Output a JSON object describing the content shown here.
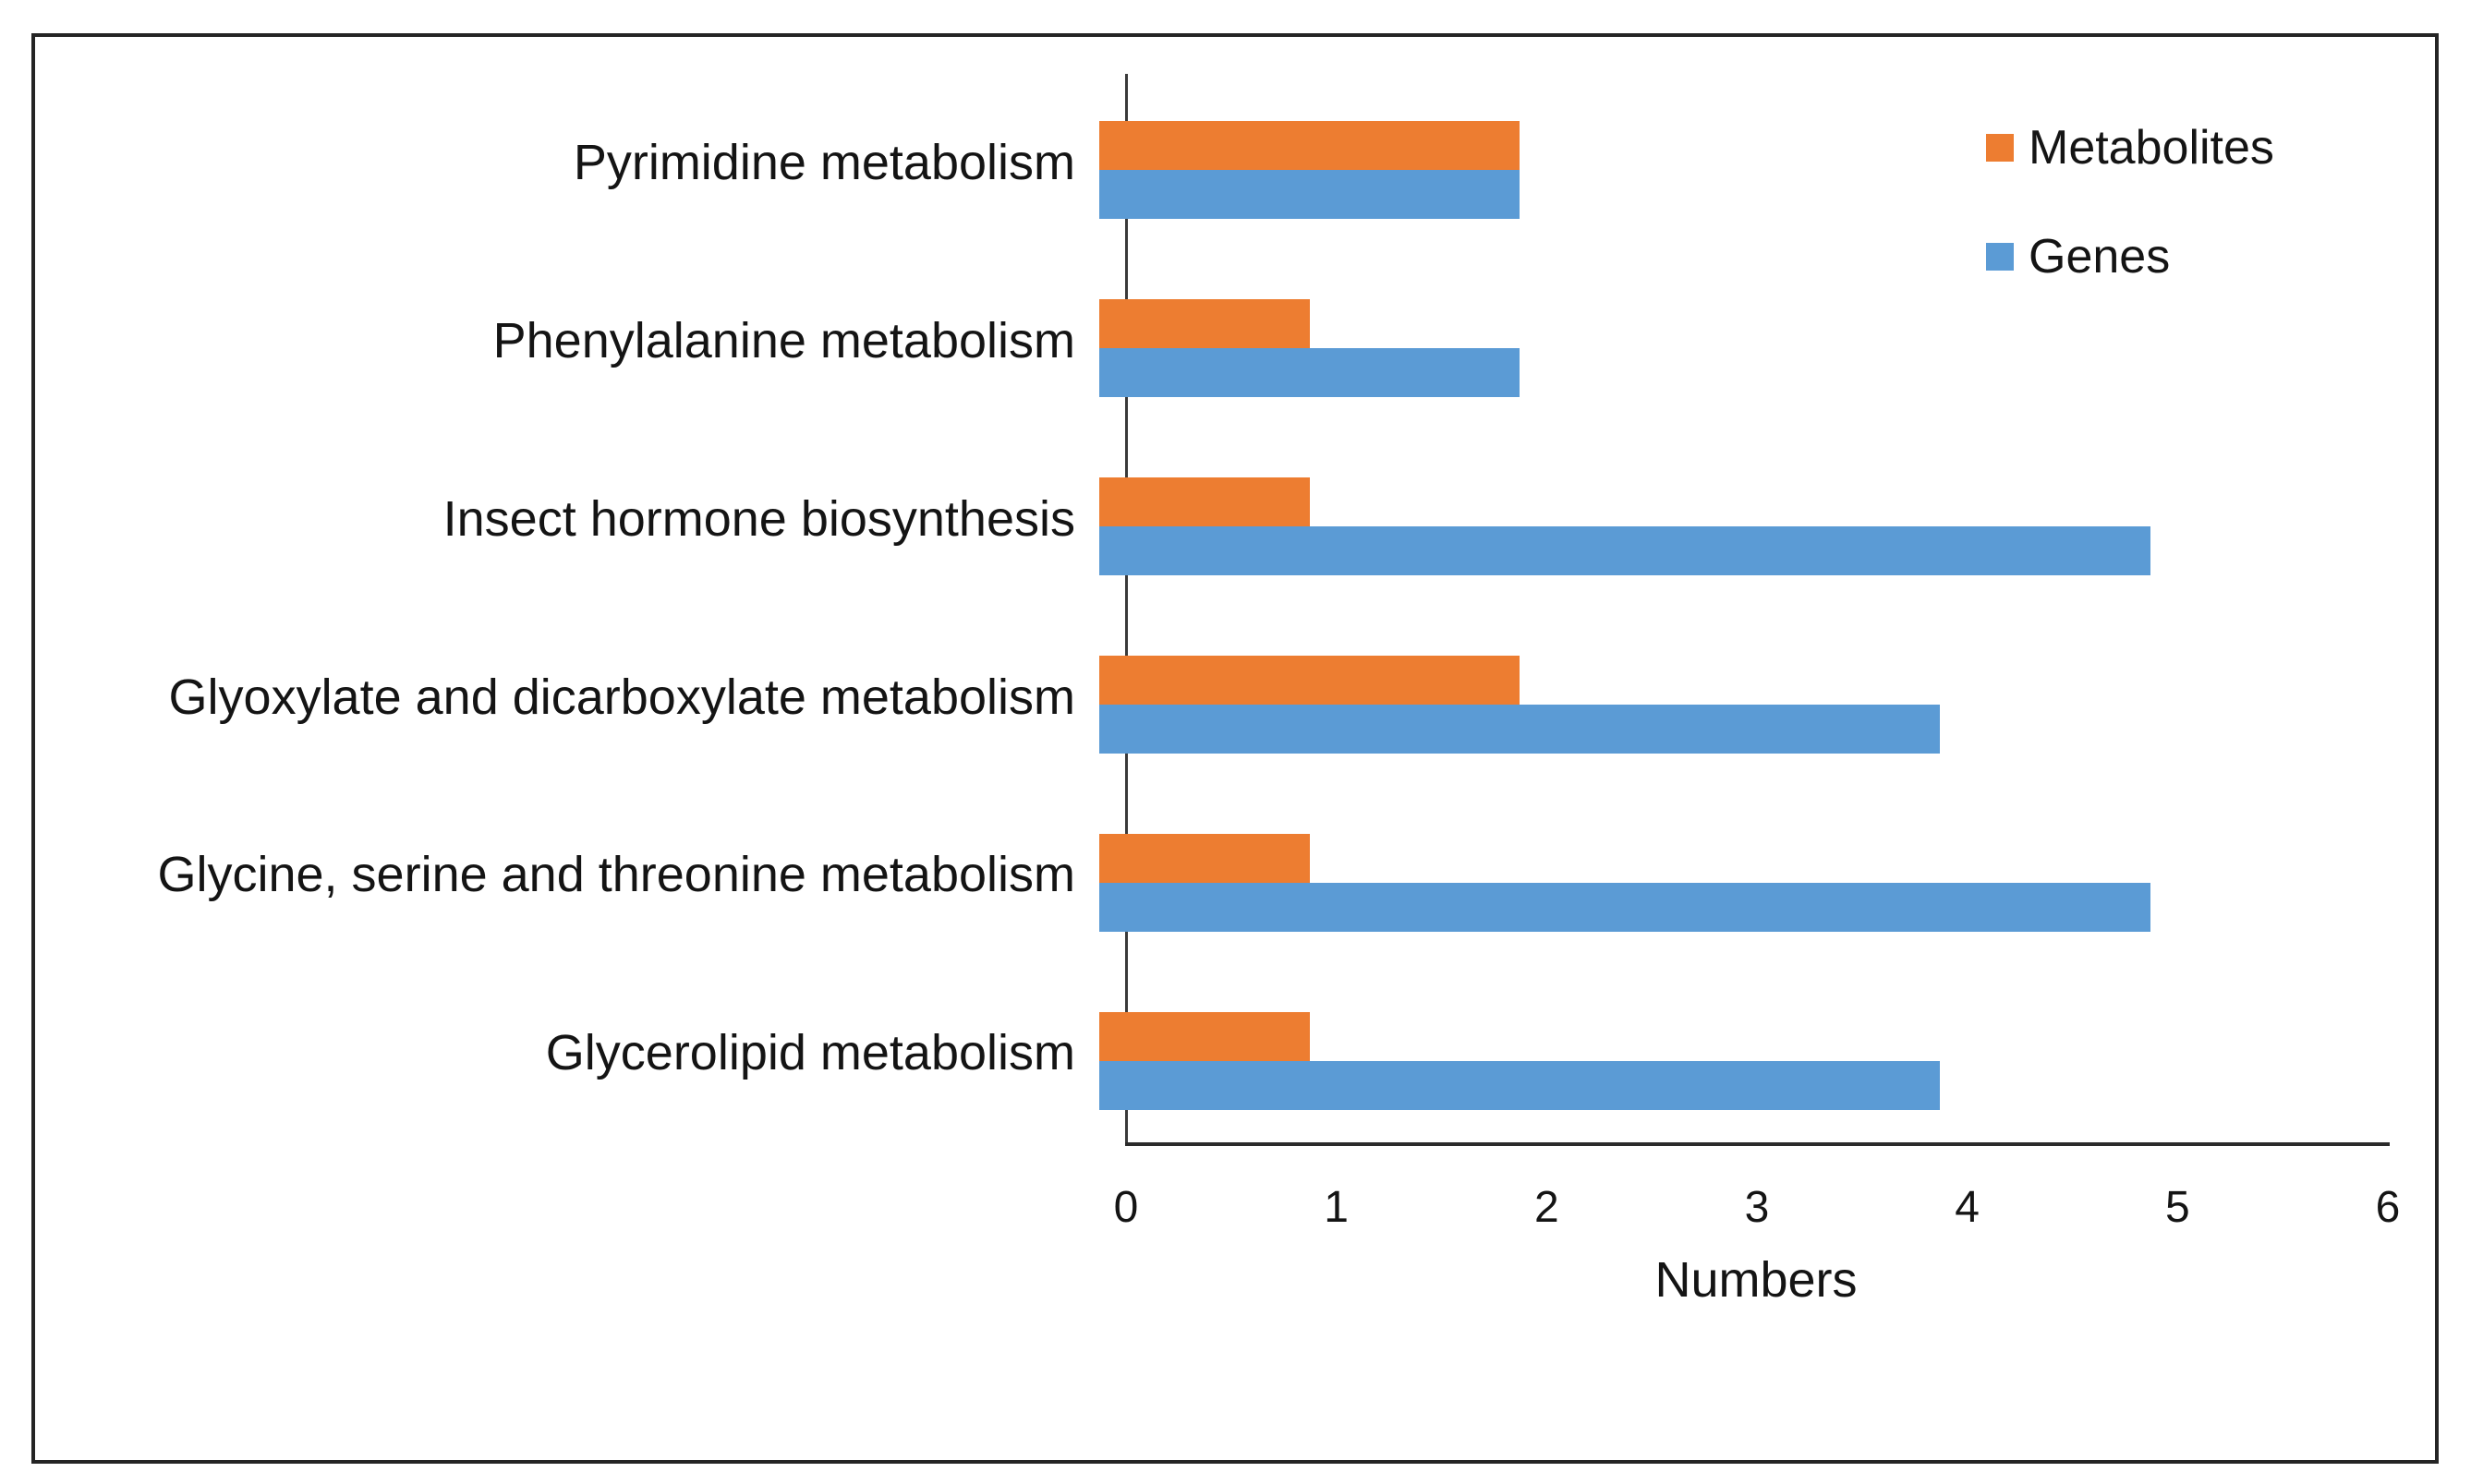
{
  "figure": {
    "background": "#ffffff",
    "border_color": "#242424",
    "axis_color": "#2b2b2b",
    "text_color": "#141414"
  },
  "chart_data": {
    "type": "bar",
    "orientation": "horizontal",
    "title": "",
    "xlabel": "Numbers",
    "ylabel": "",
    "xlim": [
      0,
      6
    ],
    "xticks": [
      0,
      1,
      2,
      3,
      4,
      5,
      6
    ],
    "grid": false,
    "legend_position": "top-right",
    "categories": [
      "Pyrimidine metabolism",
      "Phenylalanine metabolism",
      "Insect hormone biosynthesis",
      "Glyoxylate and dicarboxylate metabolism",
      "Glycine, serine and threonine metabolism",
      "Glycerolipid metabolism"
    ],
    "series": [
      {
        "name": "Metabolites",
        "color": "#ED7D31",
        "values": [
          2,
          1,
          1,
          2,
          1,
          1
        ]
      },
      {
        "name": "Genes",
        "color": "#5B9BD5",
        "values": [
          2,
          2,
          5,
          4,
          5,
          4
        ]
      }
    ]
  }
}
